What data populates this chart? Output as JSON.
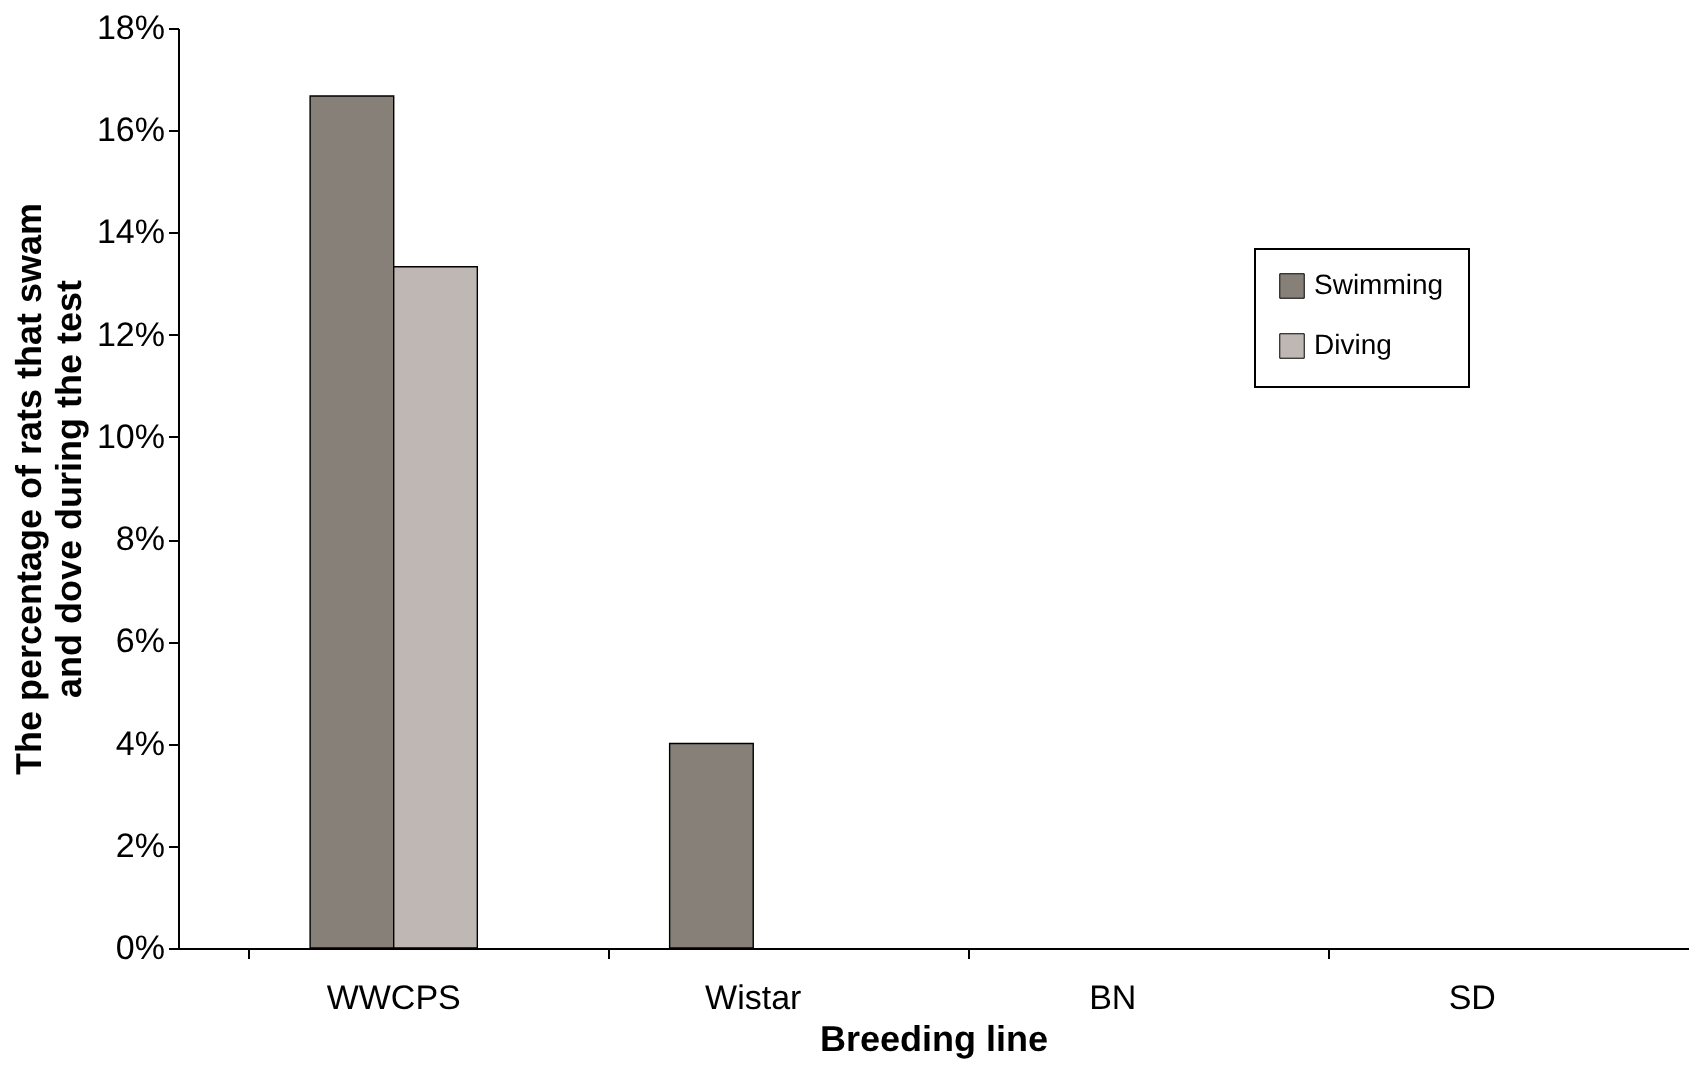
{
  "chart_data": {
    "type": "bar",
    "xlabel": "Breeding line",
    "ylabel": "The percentage of rats that swam\nand dove during the test",
    "categories": [
      "WWCPS",
      "Wistar",
      "BN",
      "SD"
    ],
    "series": [
      {
        "name": "Swimming",
        "color": "#868079",
        "values": [
          16.67,
          4,
          0,
          0
        ]
      },
      {
        "name": "Diving",
        "color": "#bfb7b3",
        "values": [
          13.33,
          0,
          0,
          0
        ]
      }
    ],
    "ylim": [
      0,
      18
    ],
    "yticks": [
      {
        "value": 0,
        "label": "0%"
      },
      {
        "value": 2,
        "label": "2%"
      },
      {
        "value": 4,
        "label": "4%"
      },
      {
        "value": 6,
        "label": "6%"
      },
      {
        "value": 8,
        "label": "8%"
      },
      {
        "value": 10,
        "label": "10%"
      },
      {
        "value": 12,
        "label": "12%"
      },
      {
        "value": 14,
        "label": "14%"
      },
      {
        "value": 16,
        "label": "16%"
      },
      {
        "value": 18,
        "label": "18%"
      }
    ],
    "grid": false,
    "legend": "top right"
  }
}
